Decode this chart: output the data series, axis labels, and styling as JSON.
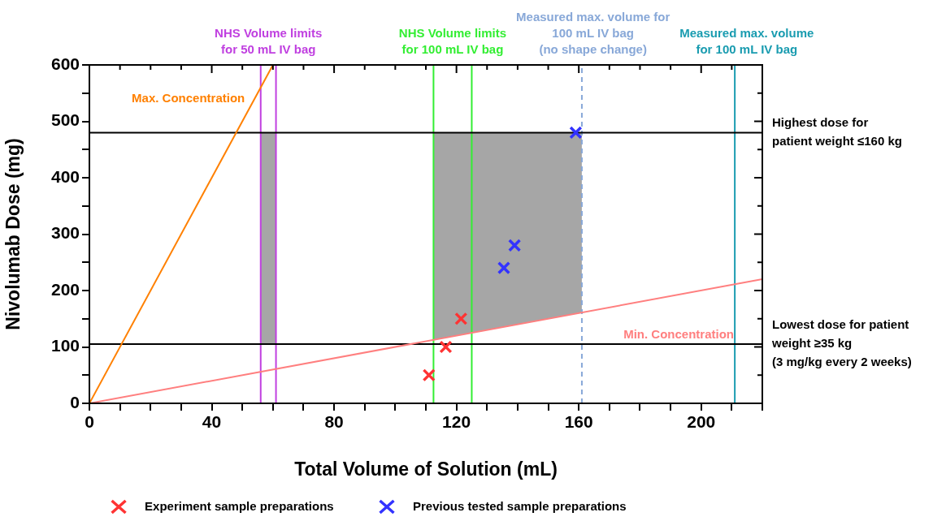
{
  "chart_data": {
    "type": "scatter",
    "xlabel": "Total Volume of Solution (mL)",
    "ylabel": "Nivolumab Dose (mg)",
    "xlim": [
      0,
      220
    ],
    "xticks": [
      0,
      {
        "value": 10,
        "label": null
      },
      {
        "value": 20,
        "label": null
      },
      {
        "value": 30,
        "label": null
      },
      40,
      {
        "value": 50,
        "label": null
      },
      {
        "value": 60,
        "label": null
      },
      {
        "value": 70,
        "label": null
      },
      80,
      {
        "value": 90,
        "label": null
      },
      {
        "value": 100,
        "label": null
      },
      {
        "value": 110,
        "label": null
      },
      120,
      {
        "value": 130,
        "label": null
      },
      {
        "value": 140,
        "label": null
      },
      {
        "value": 150,
        "label": null
      },
      160,
      {
        "value": 170,
        "label": null
      },
      {
        "value": 180,
        "label": null
      },
      {
        "value": 190,
        "label": null
      },
      200,
      {
        "value": 210,
        "label": null
      },
      {
        "value": 220,
        "label": null
      }
    ],
    "ylim": [
      0,
      600
    ],
    "yticks": [
      0,
      {
        "value": 50,
        "label": null
      },
      100,
      {
        "value": 150,
        "label": null
      },
      200,
      {
        "value": 250,
        "label": null
      },
      300,
      {
        "value": 350,
        "label": null
      },
      400,
      {
        "value": 450,
        "label": null
      },
      500,
      {
        "value": 550,
        "label": null
      },
      600
    ],
    "grid": false,
    "legend": "bottom",
    "marker": "cross",
    "series": [
      {
        "type": "line",
        "color": "#a6a6a6",
        "x": [
          56,
          61
        ],
        "values": [
          null,
          null
        ],
        "lower": [
          105,
          105
        ],
        "upper": [
          480,
          480
        ]
      },
      {
        "type": "line",
        "color": "#a6a6a6",
        "x": [
          112.5,
          161
        ],
        "values": [
          null,
          null
        ],
        "lower": [
          112.5,
          161
        ],
        "upper": [
          480,
          480
        ]
      },
      {
        "name": "Max. Concentration",
        "type": "line",
        "color": "#ff8000",
        "marker": "none",
        "x": [
          0,
          60
        ],
        "values": [
          0,
          600
        ]
      },
      {
        "name": "Min. Concentration",
        "type": "line",
        "color": "#ff7f7f",
        "marker": "none",
        "x": [
          0,
          220
        ],
        "values": [
          0,
          220
        ]
      },
      {
        "name": "Experiment sample preparations",
        "color": "#ff3333",
        "x": [
          111,
          116.5,
          121.5
        ],
        "values": [
          50,
          100,
          150
        ]
      },
      {
        "name": "Previous tested sample preparations",
        "color": "#3333ff",
        "x": [
          135.5,
          139,
          159
        ],
        "values": [
          240,
          280,
          480
        ]
      }
    ],
    "ref_lines": [
      {
        "axis": "x",
        "value": 56,
        "label": "NHS Volume limits\nfor 50 mL IV bag",
        "color": "#c040e0"
      },
      {
        "axis": "x",
        "value": 61,
        "label": null,
        "color": "#c040e0"
      },
      {
        "axis": "x",
        "value": 112.5,
        "label": "NHS Volume limits\nfor 100 mL IV bag",
        "color": "#33ee33"
      },
      {
        "axis": "x",
        "value": 125,
        "label": null,
        "color": "#33ee33"
      },
      {
        "axis": "x",
        "value": 161,
        "label": "Measured max. volume for\n100 mL IV bag\n(no shape change)",
        "color": "#88a8d8",
        "line_style": "dashed"
      },
      {
        "axis": "x",
        "value": 211,
        "label": "Measured max. volume\nfor 100 mL IV bag",
        "color": "#1a9cb0"
      },
      {
        "axis": "y",
        "value": 480,
        "label": "Highest dose for\npatient weight ≤160 kg",
        "color": "#000000"
      },
      {
        "axis": "y",
        "value": 105,
        "label": "Lowest dose for patient\nweight ≥35 kg\n(3 mg/kg every 2 weeks)",
        "color": "#000000"
      }
    ]
  }
}
